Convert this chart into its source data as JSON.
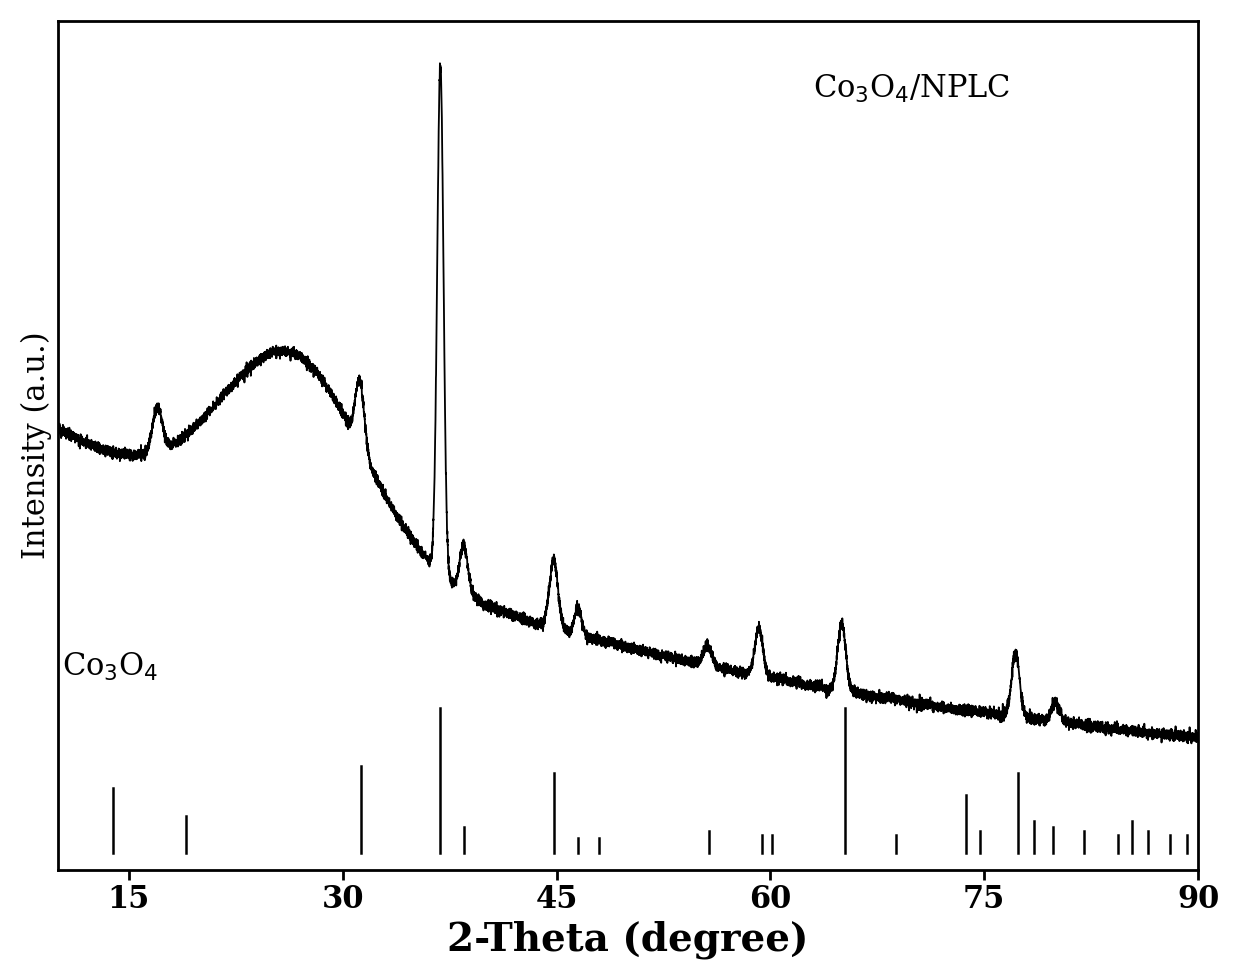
{
  "xlabel": "2-Theta (degree)",
  "ylabel": "Intensity (a.u.)",
  "xlim": [
    10,
    90
  ],
  "ylim": [
    0,
    1.0
  ],
  "xticks": [
    15,
    30,
    45,
    60,
    75,
    90
  ],
  "label_Co3O4_NPLC": "Co$_3$O$_4$/NPLC",
  "label_Co3O4": "Co$_3$O$_4$",
  "xlabel_fontsize": 28,
  "ylabel_fontsize": 22,
  "tick_fontsize": 22,
  "annotation_fontsize": 22,
  "background_color": "#ffffff",
  "line_color": "#000000",
  "ref_peaks": [
    [
      13.9,
      0.45
    ],
    [
      19.0,
      0.25
    ],
    [
      31.3,
      0.6
    ],
    [
      36.8,
      1.0
    ],
    [
      38.5,
      0.18
    ],
    [
      44.8,
      0.55
    ],
    [
      46.5,
      0.1
    ],
    [
      48.0,
      0.1
    ],
    [
      55.7,
      0.15
    ],
    [
      59.4,
      0.12
    ],
    [
      60.1,
      0.12
    ],
    [
      65.2,
      1.0
    ],
    [
      68.8,
      0.12
    ],
    [
      73.7,
      0.4
    ],
    [
      74.7,
      0.15
    ],
    [
      77.4,
      0.55
    ],
    [
      78.5,
      0.22
    ],
    [
      79.8,
      0.18
    ],
    [
      82.0,
      0.15
    ],
    [
      84.4,
      0.12
    ],
    [
      85.4,
      0.22
    ],
    [
      86.5,
      0.15
    ],
    [
      88.0,
      0.12
    ],
    [
      89.2,
      0.12
    ]
  ]
}
